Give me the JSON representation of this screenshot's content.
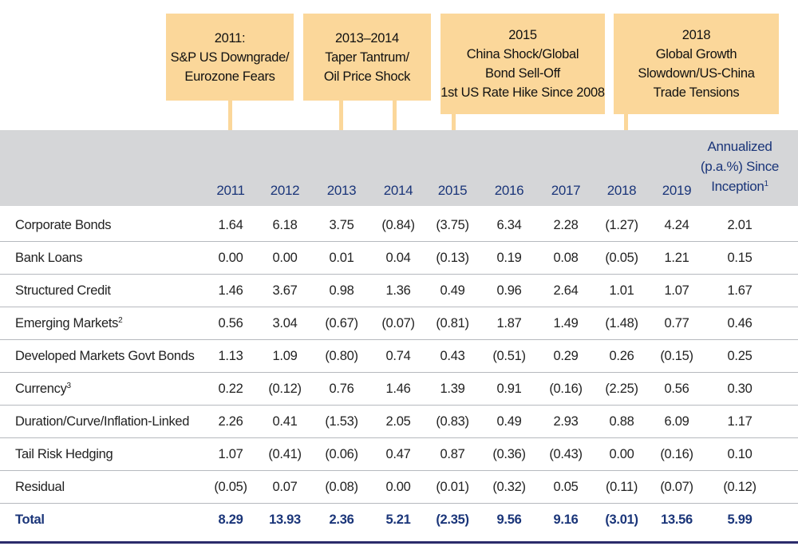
{
  "callouts": [
    {
      "lines": [
        "2011:",
        "S&P US Downgrade/",
        "Eurozone Fears"
      ]
    },
    {
      "lines": [
        "2013–2014",
        "Taper Tantrum/",
        "Oil Price Shock"
      ]
    },
    {
      "lines": [
        "2015",
        "China Shock/Global",
        "Bond Sell-Off",
        "1st US Rate Hike Since 2008"
      ]
    },
    {
      "lines": [
        "2018",
        "Global Growth",
        "Slowdown/US-China",
        "Trade Tensions"
      ]
    }
  ],
  "columns": [
    "2011",
    "2012",
    "2013",
    "2014",
    "2015",
    "2016",
    "2017",
    "2018",
    "2019"
  ],
  "annualized_header": {
    "line1": "Annualized",
    "line2": "(p.a.%) Since",
    "line3": "Inception",
    "footnote": "1"
  },
  "rows": [
    {
      "label": "Corporate Bonds",
      "footnote": "",
      "values": [
        "1.64",
        "6.18",
        "3.75",
        "(0.84)",
        "(3.75)",
        "6.34",
        "2.28",
        "(1.27)",
        "4.24",
        "2.01"
      ]
    },
    {
      "label": "Bank Loans",
      "footnote": "",
      "values": [
        "0.00",
        "0.00",
        "0.01",
        "0.04",
        "(0.13)",
        "0.19",
        "0.08",
        "(0.05)",
        "1.21",
        "0.15"
      ]
    },
    {
      "label": "Structured Credit",
      "footnote": "",
      "values": [
        "1.46",
        "3.67",
        "0.98",
        "1.36",
        "0.49",
        "0.96",
        "2.64",
        "1.01",
        "1.07",
        "1.67"
      ]
    },
    {
      "label": "Emerging Markets",
      "footnote": "2",
      "values": [
        "0.56",
        "3.04",
        "(0.67)",
        "(0.07)",
        "(0.81)",
        "1.87",
        "1.49",
        "(1.48)",
        "0.77",
        "0.46"
      ]
    },
    {
      "label": "Developed Markets Govt Bonds",
      "footnote": "",
      "values": [
        "1.13",
        "1.09",
        "(0.80)",
        "0.74",
        "0.43",
        "(0.51)",
        "0.29",
        "0.26",
        "(0.15)",
        "0.25"
      ]
    },
    {
      "label": "Currency",
      "footnote": "3",
      "values": [
        "0.22",
        "(0.12)",
        "0.76",
        "1.46",
        "1.39",
        "0.91",
        "(0.16)",
        "(2.25)",
        "0.56",
        "0.30"
      ]
    },
    {
      "label": "Duration/Curve/Inflation-Linked",
      "footnote": "",
      "values": [
        "2.26",
        "0.41",
        "(1.53)",
        "2.05",
        "(0.83)",
        "0.49",
        "2.93",
        "0.88",
        "6.09",
        "1.17"
      ]
    },
    {
      "label": "Tail Risk Hedging",
      "footnote": "",
      "values": [
        "1.07",
        "(0.41)",
        "(0.06)",
        "0.47",
        "0.87",
        "(0.36)",
        "(0.43)",
        "0.00",
        "(0.16)",
        "0.10"
      ]
    },
    {
      "label": "Residual",
      "footnote": "",
      "values": [
        "(0.05)",
        "0.07",
        "(0.08)",
        "0.00",
        "(0.01)",
        "(0.32)",
        "0.05",
        "(0.11)",
        "(0.07)",
        "(0.12)"
      ]
    }
  ],
  "total": {
    "label": "Total",
    "values": [
      "8.29",
      "13.93",
      "2.36",
      "5.21",
      "(2.35)",
      "9.56",
      "9.16",
      "(3.01)",
      "13.56",
      "5.99"
    ]
  },
  "colors": {
    "callout": "#fbd79a",
    "header_band": "#d5d6d8",
    "header_text": "#1a3579",
    "rule": "#2b2b6b"
  }
}
